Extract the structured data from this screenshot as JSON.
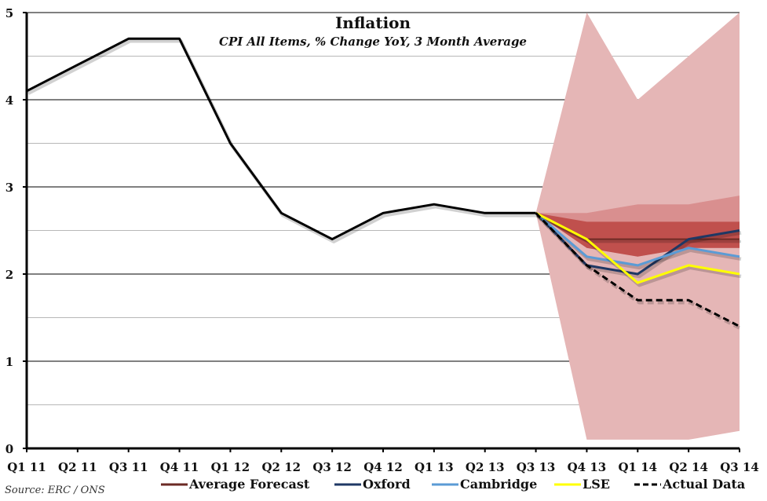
{
  "chart_data": {
    "type": "line",
    "title": "Inflation",
    "subtitle": "CPI All Items, % Change YoY, 3 Month Average",
    "xlabel": "",
    "ylabel": "",
    "categories": [
      "Q1 11",
      "Q2 11",
      "Q3 11",
      "Q4 11",
      "Q1 12",
      "Q2 12",
      "Q3 12",
      "Q4 12",
      "Q1 13",
      "Q2 13",
      "Q3 13",
      "Q4 13",
      "Q1 14",
      "Q2 14",
      "Q3 14"
    ],
    "ylim": [
      0,
      5
    ],
    "yticks": [
      0,
      1,
      2,
      3,
      4,
      5
    ],
    "grid": true,
    "historical": {
      "name": "CPI",
      "color": "#000000",
      "values": [
        4.1,
        4.4,
        4.7,
        4.7,
        3.5,
        2.7,
        2.4,
        2.7,
        2.8,
        2.7,
        2.7,
        null,
        null,
        null,
        null
      ]
    },
    "bands": [
      {
        "name": "outer-range",
        "color": "#e5b6b6",
        "upper": [
          null,
          null,
          null,
          null,
          null,
          null,
          null,
          null,
          null,
          null,
          2.7,
          5.0,
          4.0,
          4.5,
          5.0
        ],
        "lower": [
          null,
          null,
          null,
          null,
          null,
          null,
          null,
          null,
          null,
          null,
          2.7,
          0.1,
          0.1,
          0.1,
          0.2
        ]
      },
      {
        "name": "middle-range",
        "color": "#d98f8f",
        "upper": [
          null,
          null,
          null,
          null,
          null,
          null,
          null,
          null,
          null,
          null,
          2.7,
          2.7,
          2.8,
          2.8,
          2.9
        ],
        "lower": [
          null,
          null,
          null,
          null,
          null,
          null,
          null,
          null,
          null,
          null,
          2.7,
          2.3,
          2.2,
          2.3,
          2.3
        ]
      },
      {
        "name": "inner-range",
        "color": "#c0504d",
        "upper": [
          null,
          null,
          null,
          null,
          null,
          null,
          null,
          null,
          null,
          null,
          2.7,
          2.6,
          2.6,
          2.6,
          2.6
        ],
        "lower": [
          null,
          null,
          null,
          null,
          null,
          null,
          null,
          null,
          null,
          null,
          2.7,
          2.3,
          2.2,
          2.3,
          2.3
        ]
      }
    ],
    "series": [
      {
        "name": "Average Forecast",
        "color": "#6b2a24",
        "dash": false,
        "values": [
          null,
          null,
          null,
          null,
          null,
          null,
          null,
          null,
          null,
          null,
          2.7,
          2.4,
          2.4,
          2.4,
          2.4
        ]
      },
      {
        "name": "Oxford",
        "color": "#1f3864",
        "dash": false,
        "values": [
          null,
          null,
          null,
          null,
          null,
          null,
          null,
          null,
          null,
          null,
          2.7,
          2.1,
          2.0,
          2.4,
          2.5
        ]
      },
      {
        "name": "Cambridge",
        "color": "#5b9bd5",
        "dash": false,
        "values": [
          null,
          null,
          null,
          null,
          null,
          null,
          null,
          null,
          null,
          null,
          2.7,
          2.2,
          2.1,
          2.3,
          2.2
        ]
      },
      {
        "name": "LSE",
        "color": "#ffff00",
        "dash": false,
        "values": [
          null,
          null,
          null,
          null,
          null,
          null,
          null,
          null,
          null,
          null,
          2.7,
          2.4,
          1.9,
          2.1,
          2.0
        ]
      },
      {
        "name": "Actual Data",
        "color": "#000000",
        "dash": true,
        "values": [
          null,
          null,
          null,
          null,
          null,
          null,
          null,
          null,
          null,
          null,
          2.7,
          2.1,
          1.7,
          1.7,
          1.4
        ]
      }
    ],
    "legend": [
      "Average Forecast",
      "Oxford",
      "Cambridge",
      "LSE",
      "Actual Data"
    ],
    "legend_position": "bottom"
  },
  "source": "Source: ERC / ONS"
}
